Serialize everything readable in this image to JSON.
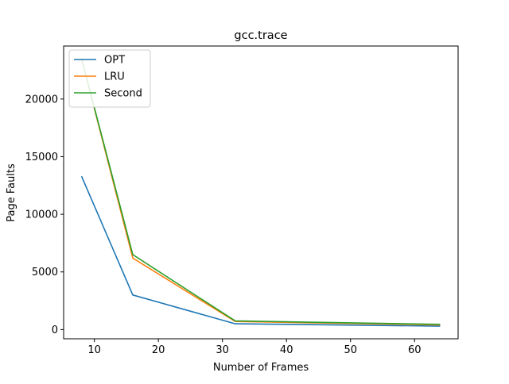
{
  "chart_data": {
    "type": "line",
    "title": "gcc.trace",
    "xlabel": "Number of Frames",
    "ylabel": "Page Faults",
    "x": [
      8,
      16,
      32,
      64
    ],
    "xlim": [
      5.2,
      66.8
    ],
    "ylim": [
      -800,
      24600
    ],
    "xticks": [
      10,
      20,
      30,
      40,
      50,
      60
    ],
    "yticks": [
      0,
      5000,
      10000,
      15000,
      20000
    ],
    "grid": false,
    "legend_position": "top-left",
    "series": [
      {
        "name": "OPT",
        "color": "#1f77b4",
        "values": [
          13300,
          3000,
          500,
          300
        ]
      },
      {
        "name": "LRU",
        "color": "#ff7f0e",
        "values": [
          23500,
          6200,
          700,
          400
        ]
      },
      {
        "name": "Second",
        "color": "#2ca02c",
        "values": [
          23500,
          6500,
          750,
          450
        ]
      }
    ]
  }
}
